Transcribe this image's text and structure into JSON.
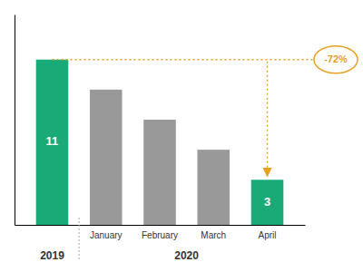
{
  "chart_data": {
    "type": "bar",
    "categories": [
      null,
      "January",
      "February",
      "March",
      "April"
    ],
    "values": [
      11,
      9,
      7,
      5,
      3
    ],
    "colors": [
      "#1aaa78",
      "#999999",
      "#999999",
      "#999999",
      "#1aaa78"
    ],
    "value_labels": [
      "11",
      null,
      null,
      null,
      "3"
    ],
    "annotation": "-72%",
    "group_labels": [
      "2019",
      "2020"
    ],
    "ylim": [
      0,
      14
    ],
    "grid": false,
    "tick_labels": "x"
  }
}
